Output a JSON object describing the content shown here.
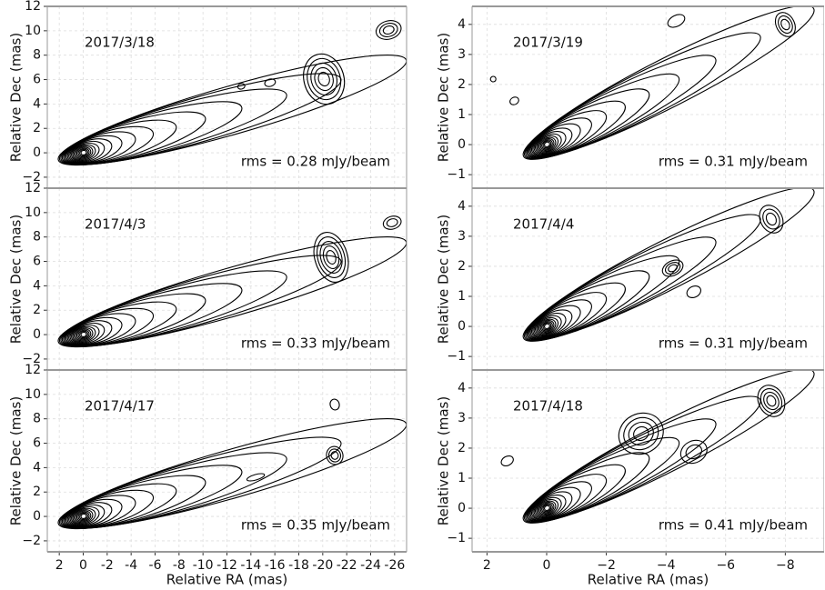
{
  "chart_data": [
    {
      "type": "contour",
      "ylabel": "Relative Dec (mas)",
      "xlim": [
        3,
        -27
      ],
      "ylim": [
        -2.9,
        12
      ],
      "xticks": [
        2,
        0,
        -2,
        -4,
        -6,
        -8,
        -10,
        -12,
        -14,
        -16,
        -18,
        -20,
        -22,
        -24,
        -26
      ],
      "yticks": [
        {
          "value": -2,
          "label": "−2"
        },
        0,
        2,
        4,
        6,
        8,
        10,
        12
      ],
      "grid": true,
      "annotations": [
        "2017/3/18",
        "rms = 0.28 mJy/beam"
      ]
    },
    {
      "type": "contour",
      "ylabel": "Relative Dec (mas)",
      "xlim": [
        3,
        -27
      ],
      "ylim": [
        -2.9,
        12
      ],
      "xticks": [
        2,
        0,
        -2,
        -4,
        -6,
        -8,
        -10,
        -12,
        -14,
        -16,
        -18,
        -20,
        -22,
        -24,
        -26
      ],
      "yticks": [
        {
          "value": -2,
          "label": "−2"
        },
        0,
        2,
        4,
        6,
        8,
        10,
        12
      ],
      "grid": true,
      "annotations": [
        "2017/4/3",
        "rms = 0.33 mJy/beam"
      ]
    },
    {
      "type": "contour",
      "xlabel": "Relative RA (mas)",
      "ylabel": "Relative Dec (mas)",
      "xlim": [
        3,
        -27
      ],
      "ylim": [
        -2.9,
        12
      ],
      "xticks": [
        2,
        0,
        -2,
        -4,
        -6,
        -8,
        -10,
        -12,
        -14,
        -16,
        -18,
        -20,
        -22,
        -24,
        -26
      ],
      "yticks": [
        {
          "value": -2,
          "label": "−2"
        },
        0,
        2,
        4,
        6,
        8,
        10,
        12
      ],
      "grid": true,
      "annotations": [
        "2017/4/17",
        "rms = 0.35 mJy/beam"
      ]
    },
    {
      "type": "contour",
      "ylabel": "Relative Dec (mas)",
      "xlim": [
        2.5,
        -9.3
      ],
      "ylim": [
        -1.45,
        4.6
      ],
      "xticks": [
        2,
        0,
        {
          "value": -2,
          "label": "−2"
        },
        {
          "value": -4,
          "label": "−4"
        },
        {
          "value": -6,
          "label": "−6"
        },
        {
          "value": -8,
          "label": "−8"
        }
      ],
      "yticks": [
        {
          "value": -1,
          "label": "−1"
        },
        0,
        1,
        2,
        3,
        4
      ],
      "grid": true,
      "annotations": [
        "2017/3/19",
        "rms = 0.31 mJy/beam"
      ]
    },
    {
      "type": "contour",
      "ylabel": "Relative Dec (mas)",
      "xlim": [
        2.5,
        -9.3
      ],
      "ylim": [
        -1.45,
        4.6
      ],
      "xticks": [
        2,
        0,
        {
          "value": -2,
          "label": "−2"
        },
        {
          "value": -4,
          "label": "−4"
        },
        {
          "value": -6,
          "label": "−6"
        },
        {
          "value": -8,
          "label": "−8"
        }
      ],
      "yticks": [
        {
          "value": -1,
          "label": "−1"
        },
        0,
        1,
        2,
        3,
        4
      ],
      "grid": true,
      "annotations": [
        "2017/4/4",
        "rms = 0.31 mJy/beam"
      ]
    },
    {
      "type": "contour",
      "xlabel": "Relative RA (mas)",
      "ylabel": "Relative Dec (mas)",
      "xlim": [
        2.5,
        -9.3
      ],
      "ylim": [
        -1.45,
        4.6
      ],
      "xticks": [
        2,
        0,
        {
          "value": -2,
          "label": "−2"
        },
        {
          "value": -4,
          "label": "−4"
        },
        {
          "value": -6,
          "label": "−6"
        },
        {
          "value": -8,
          "label": "−8"
        }
      ],
      "yticks": [
        {
          "value": -1,
          "label": "−1"
        },
        0,
        1,
        2,
        3,
        4
      ],
      "grid": true,
      "annotations": [
        "2017/4/18",
        "rms = 0.41 mJy/beam"
      ]
    }
  ]
}
